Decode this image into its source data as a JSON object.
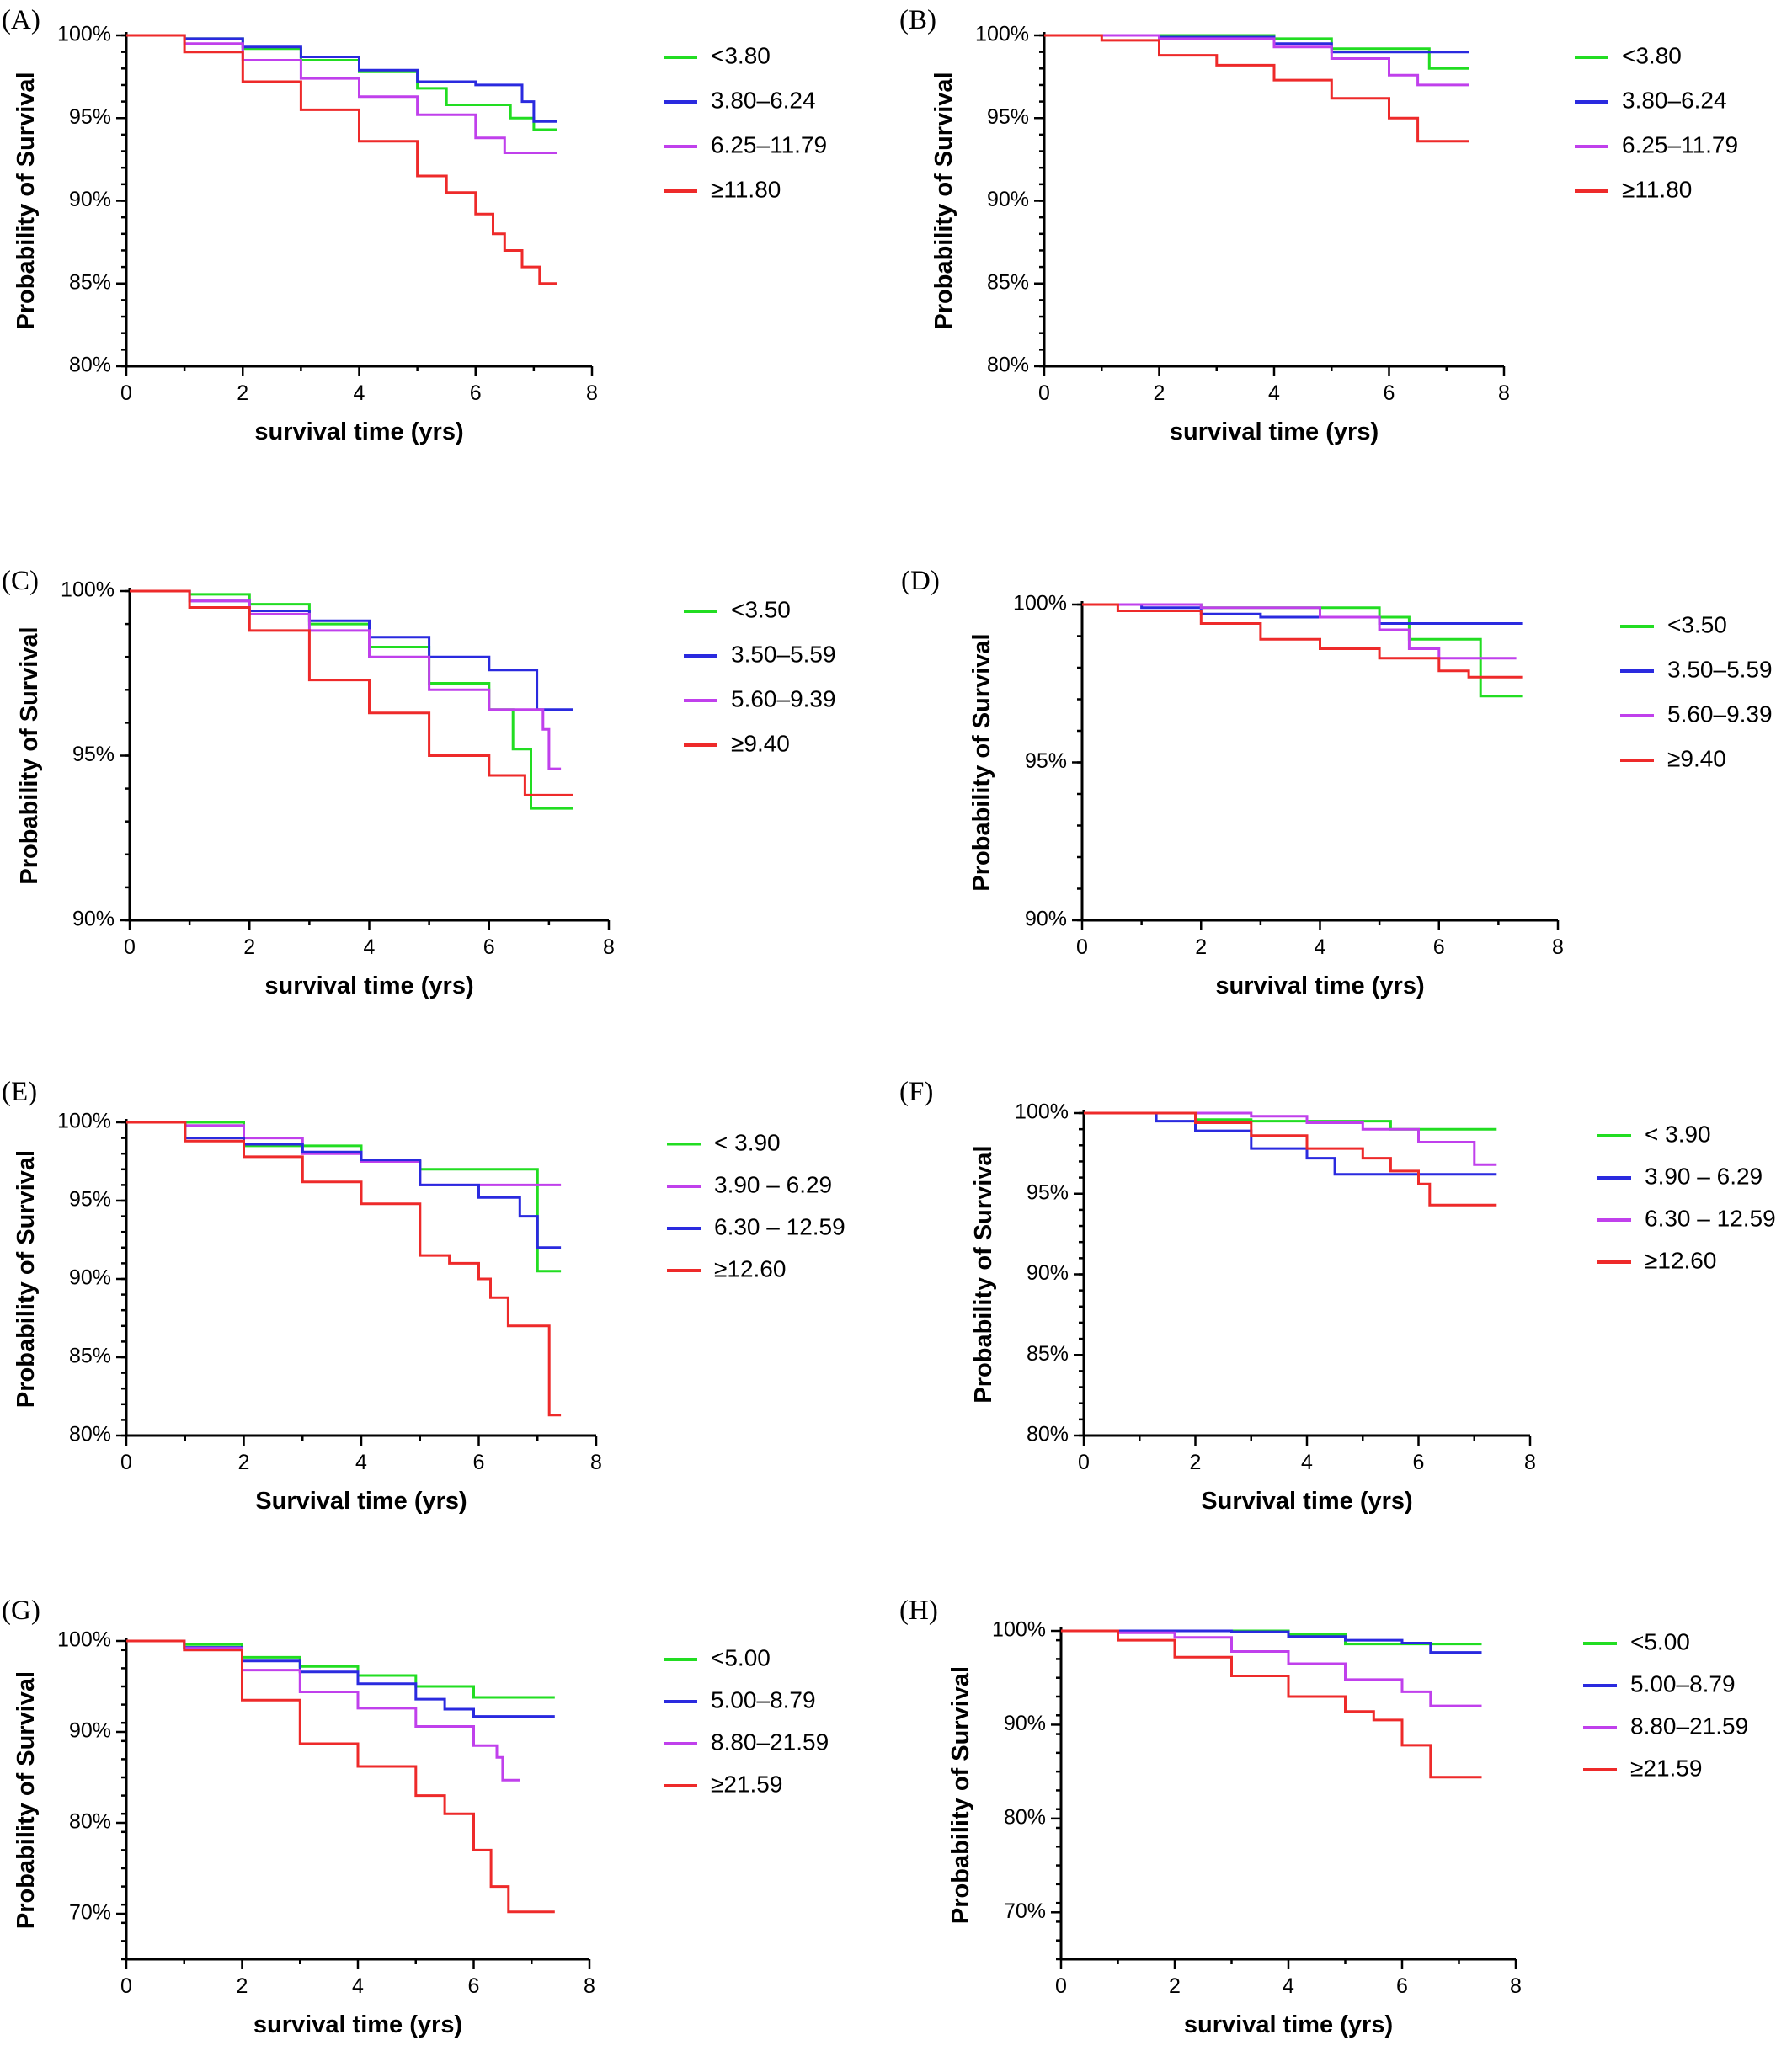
{
  "colors": {
    "green": "#22dd22",
    "blue": "#2a2adf",
    "purple": "#c040ec",
    "red": "#ee2a2a"
  },
  "chart_data": [
    {
      "panel": "(A)",
      "type": "line",
      "xlabel": "survival time (yrs)",
      "ylabel": "Probability of Survival",
      "xlim": [
        0,
        8
      ],
      "ylim": [
        80,
        100
      ],
      "xticks": [
        "0",
        "2",
        "4",
        "6",
        "8"
      ],
      "yticks": [
        "80%",
        "85%",
        "90%",
        "95%",
        "100%"
      ],
      "series": [
        {
          "name": "<3.80",
          "color": "#22dd22",
          "x": [
            0,
            1,
            2,
            3,
            4,
            5,
            5.5,
            6.3,
            6.6,
            7.0,
            7.4
          ],
          "y": [
            100,
            99.8,
            99.2,
            98.5,
            97.8,
            96.8,
            95.8,
            95.8,
            95.0,
            94.3,
            94.3
          ]
        },
        {
          "name": "3.80–6.24",
          "color": "#2a2adf",
          "x": [
            0,
            1,
            2,
            3,
            4,
            5,
            6,
            6.8,
            7.0,
            7.4
          ],
          "y": [
            100,
            99.8,
            99.3,
            98.7,
            97.9,
            97.2,
            97.0,
            96.0,
            94.8,
            94.8
          ]
        },
        {
          "name": "6.25–11.79",
          "color": "#c040ec",
          "x": [
            0,
            1,
            2,
            3,
            4,
            5,
            6,
            6.5,
            7.4
          ],
          "y": [
            100,
            99.5,
            98.5,
            97.4,
            96.3,
            95.2,
            93.8,
            92.9,
            92.9
          ]
        },
        {
          "name": "≥11.80",
          "color": "#ee2a2a",
          "x": [
            0,
            1,
            2,
            3,
            4,
            5,
            5.5,
            6.0,
            6.3,
            6.5,
            6.8,
            7.1,
            7.4
          ],
          "y": [
            100,
            99.0,
            97.2,
            95.5,
            93.6,
            91.5,
            90.5,
            89.2,
            88.0,
            87.0,
            86.0,
            85.0,
            85.0
          ]
        }
      ]
    },
    {
      "panel": "(B)",
      "type": "line",
      "xlabel": "survival time (yrs)",
      "ylabel": "Probability of Survival",
      "xlim": [
        0,
        8
      ],
      "ylim": [
        80,
        100
      ],
      "xticks": [
        "0",
        "2",
        "4",
        "6",
        "8"
      ],
      "yticks": [
        "80%",
        "85%",
        "90%",
        "95%",
        "100%"
      ],
      "series": [
        {
          "name": "<3.80",
          "color": "#22dd22",
          "x": [
            0,
            2,
            4,
            5,
            6.7,
            6.7,
            7.4
          ],
          "y": [
            100,
            100,
            99.8,
            99.2,
            99.0,
            98.0,
            98.0
          ]
        },
        {
          "name": "3.80–6.24",
          "color": "#2a2adf",
          "x": [
            0,
            2,
            4,
            5,
            7.4
          ],
          "y": [
            100,
            99.9,
            99.5,
            99.0,
            99.0
          ]
        },
        {
          "name": "6.25–11.79",
          "color": "#c040ec",
          "x": [
            0,
            2,
            4,
            5,
            6,
            6.5,
            7.4
          ],
          "y": [
            100,
            99.8,
            99.3,
            98.6,
            97.6,
            97.0,
            97.0
          ]
        },
        {
          "name": "≥11.80",
          "color": "#ee2a2a",
          "x": [
            0,
            1,
            2,
            3,
            4,
            5,
            6,
            6.5,
            7.4
          ],
          "y": [
            100,
            99.7,
            98.8,
            98.2,
            97.3,
            96.2,
            95.0,
            93.6,
            93.6
          ]
        }
      ]
    },
    {
      "panel": "(C)",
      "type": "line",
      "xlabel": "survival time (yrs)",
      "ylabel": "Probability of Survival",
      "xlim": [
        0,
        8
      ],
      "ylim": [
        90,
        100
      ],
      "xticks": [
        "0",
        "2",
        "4",
        "6",
        "8"
      ],
      "yticks": [
        "90%",
        "95%",
        "100%"
      ],
      "series": [
        {
          "name": "<3.50",
          "color": "#22dd22",
          "x": [
            0,
            1,
            2,
            3,
            4,
            5,
            6,
            6.4,
            6.7,
            7.4
          ],
          "y": [
            100,
            99.9,
            99.6,
            99.0,
            98.3,
            97.2,
            96.4,
            95.2,
            93.4,
            93.4
          ]
        },
        {
          "name": "3.50–5.59",
          "color": "#2a2adf",
          "x": [
            0,
            1,
            2,
            3,
            4,
            5,
            6,
            6.6,
            6.8,
            7.4
          ],
          "y": [
            100,
            99.7,
            99.4,
            99.1,
            98.6,
            98.0,
            97.6,
            97.6,
            96.4,
            96.4
          ]
        },
        {
          "name": "5.60–9.39",
          "color": "#c040ec",
          "x": [
            0,
            1,
            2,
            3,
            4,
            5,
            6,
            6.9,
            7.0,
            7.2
          ],
          "y": [
            100,
            99.7,
            99.3,
            98.8,
            98.0,
            97.0,
            96.4,
            95.8,
            94.6,
            94.6
          ]
        },
        {
          "name": "≥9.40",
          "color": "#ee2a2a",
          "x": [
            0,
            1,
            2,
            3,
            4,
            5,
            6,
            6.6,
            7.4
          ],
          "y": [
            100,
            99.5,
            98.8,
            97.3,
            96.3,
            95.0,
            94.4,
            93.8,
            93.8
          ]
        }
      ]
    },
    {
      "panel": "(D)",
      "type": "line",
      "xlabel": "survival time (yrs)",
      "ylabel": "Probability of Survival",
      "xlim": [
        0,
        8
      ],
      "ylim": [
        90,
        100
      ],
      "xticks": [
        "0",
        "2",
        "4",
        "6",
        "8"
      ],
      "yticks": [
        "90%",
        "95%",
        "100%"
      ],
      "series": [
        {
          "name": "<3.50",
          "color": "#22dd22",
          "x": [
            0,
            2,
            4,
            5,
            5.5,
            6.7,
            6.7,
            7.4
          ],
          "y": [
            100,
            99.9,
            99.9,
            99.6,
            98.9,
            98.9,
            97.1,
            97.1
          ]
        },
        {
          "name": "3.50–5.59",
          "color": "#2a2adf",
          "x": [
            0,
            1,
            2,
            3,
            4,
            5,
            7.4
          ],
          "y": [
            100,
            99.9,
            99.7,
            99.6,
            99.6,
            99.4,
            99.4
          ]
        },
        {
          "name": "5.60–9.39",
          "color": "#c040ec",
          "x": [
            0,
            2,
            4,
            5,
            5.5,
            6.0,
            7.3
          ],
          "y": [
            100,
            99.9,
            99.6,
            99.2,
            98.6,
            98.3,
            98.3
          ]
        },
        {
          "name": "≥9.40",
          "color": "#ee2a2a",
          "x": [
            0,
            0.6,
            2,
            3,
            4,
            5,
            6,
            6.5,
            7.4
          ],
          "y": [
            100,
            99.8,
            99.4,
            98.9,
            98.6,
            98.3,
            97.9,
            97.7,
            97.7
          ]
        }
      ]
    },
    {
      "panel": "(E)",
      "type": "line",
      "xlabel": "Survival time (yrs)",
      "ylabel": "Probability of Survival",
      "xlim": [
        0,
        8
      ],
      "ylim": [
        80,
        100
      ],
      "xticks": [
        "0",
        "2",
        "4",
        "6",
        "8"
      ],
      "yticks": [
        "80%",
        "85%",
        "90%",
        "95%",
        "100%"
      ],
      "series": [
        {
          "name": "< 3.90",
          "color": "#22dd22",
          "x": [
            0,
            2,
            4,
            5,
            7.0,
            7.0,
            7.4
          ],
          "y": [
            100,
            98.5,
            97.5,
            97.0,
            97.0,
            90.5,
            90.5
          ]
        },
        {
          "name": "3.90 – 6.29",
          "color": "#c040ec",
          "x": [
            0,
            1,
            2,
            3,
            4,
            5,
            7.4
          ],
          "y": [
            100,
            99.8,
            99.0,
            98.0,
            97.5,
            96.0,
            96.0
          ]
        },
        {
          "name": "6.30 – 12.59",
          "color": "#2a2adf",
          "x": [
            0,
            1,
            2,
            3,
            4,
            5,
            6,
            6.7,
            7.0,
            7.4
          ],
          "y": [
            100,
            99.0,
            98.6,
            98.1,
            97.6,
            96.0,
            95.2,
            94.0,
            92.0,
            92.0
          ]
        },
        {
          "name": "≥12.60",
          "color": "#ee2a2a",
          "x": [
            0,
            1,
            2,
            3,
            4,
            5,
            5.5,
            6.0,
            6.2,
            6.5,
            7.1,
            7.2,
            7.4
          ],
          "y": [
            100,
            98.8,
            97.8,
            96.2,
            94.8,
            91.5,
            91.0,
            90.0,
            88.8,
            87.0,
            87.0,
            81.3,
            81.3
          ]
        }
      ]
    },
    {
      "panel": "(F)",
      "type": "line",
      "xlabel": "Survival time (yrs)",
      "ylabel": "Probability of Survival",
      "xlim": [
        0,
        8
      ],
      "ylim": [
        80,
        100
      ],
      "xticks": [
        "0",
        "2",
        "4",
        "6",
        "8"
      ],
      "yticks": [
        "80%",
        "85%",
        "90%",
        "95%",
        "100%"
      ],
      "series": [
        {
          "name": "< 3.90",
          "color": "#22dd22",
          "x": [
            0,
            2,
            3,
            4,
            5,
            5.5,
            7.4
          ],
          "y": [
            100,
            99.6,
            99.5,
            99.5,
            99.5,
            99.0,
            99.0
          ]
        },
        {
          "name": "3.90 – 6.29",
          "color": "#2a2adf",
          "x": [
            0,
            1.3,
            2,
            3,
            4,
            4.5,
            7.4
          ],
          "y": [
            100,
            99.5,
            98.9,
            97.8,
            97.2,
            96.2,
            96.2
          ]
        },
        {
          "name": "6.30 – 12.59",
          "color": "#c040ec",
          "x": [
            0,
            2,
            3,
            4,
            5,
            6,
            6.6,
            7.0,
            7.4
          ],
          "y": [
            100,
            100,
            99.8,
            99.4,
            99.0,
            98.2,
            98.2,
            96.8,
            96.8
          ]
        },
        {
          "name": "≥12.60",
          "color": "#ee2a2a",
          "x": [
            0,
            2,
            3,
            4,
            5,
            5.5,
            6,
            6.2,
            7.4
          ],
          "y": [
            100,
            99.4,
            98.6,
            97.8,
            97.2,
            96.4,
            95.6,
            94.3,
            94.3
          ]
        }
      ]
    },
    {
      "panel": "(G)",
      "type": "line",
      "xlabel": "survival time (yrs)",
      "ylabel": "Probability of Survival",
      "xlim": [
        0,
        8
      ],
      "ylim": [
        65,
        100
      ],
      "xticks": [
        "0",
        "2",
        "4",
        "6",
        "8"
      ],
      "yticks": [
        "70%",
        "80%",
        "90%",
        "100%"
      ],
      "series": [
        {
          "name": "<5.00",
          "color": "#22dd22",
          "x": [
            0,
            1,
            2,
            3,
            4,
            5,
            6,
            7.4
          ],
          "y": [
            100,
            99.6,
            98.2,
            97.2,
            96.2,
            95.0,
            93.8,
            93.8
          ]
        },
        {
          "name": "5.00–8.79",
          "color": "#2a2adf",
          "x": [
            0,
            1,
            2,
            3,
            4,
            5,
            5.5,
            6,
            7.4
          ],
          "y": [
            100,
            99.3,
            97.8,
            96.6,
            95.3,
            93.6,
            92.5,
            91.7,
            91.7
          ]
        },
        {
          "name": "8.80–21.59",
          "color": "#c040ec",
          "x": [
            0,
            1,
            2,
            3,
            4,
            5,
            6,
            6.4,
            6.5,
            6.8
          ],
          "y": [
            100,
            99.2,
            96.8,
            94.4,
            92.6,
            90.6,
            88.5,
            87.2,
            84.7,
            84.7
          ]
        },
        {
          "name": "≥21.59",
          "color": "#ee2a2a",
          "x": [
            0,
            1,
            2,
            3,
            4,
            5,
            5.5,
            6,
            6.3,
            6.6,
            7.4
          ],
          "y": [
            100,
            99.0,
            93.5,
            88.7,
            86.2,
            83.0,
            81.0,
            77.0,
            73.0,
            70.2,
            70.2
          ]
        }
      ]
    },
    {
      "panel": "(H)",
      "type": "line",
      "xlabel": "survival time (yrs)",
      "ylabel": "Probability of Survival",
      "xlim": [
        0,
        8
      ],
      "ylim": [
        65,
        100
      ],
      "xticks": [
        "0",
        "2",
        "4",
        "6",
        "8"
      ],
      "yticks": [
        "70%",
        "80%",
        "90%",
        "100%"
      ],
      "series": [
        {
          "name": "<5.00",
          "color": "#22dd22",
          "x": [
            0,
            2,
            4,
            5,
            7.4
          ],
          "y": [
            100,
            100,
            99.6,
            98.6,
            98.6
          ]
        },
        {
          "name": "5.00–8.79",
          "color": "#2a2adf",
          "x": [
            0,
            2,
            3,
            4,
            5,
            6,
            6.5,
            7.4
          ],
          "y": [
            100,
            100,
            99.9,
            99.4,
            99.0,
            98.7,
            97.7,
            97.7
          ]
        },
        {
          "name": "8.80–21.59",
          "color": "#c040ec",
          "x": [
            0,
            1,
            2,
            3,
            4,
            5,
            6,
            6.5,
            7.4
          ],
          "y": [
            100,
            99.8,
            99.3,
            97.8,
            96.5,
            94.8,
            93.5,
            92.0,
            92.0
          ]
        },
        {
          "name": "≥21.59",
          "color": "#ee2a2a",
          "x": [
            0,
            1,
            2,
            3,
            4,
            5,
            5.5,
            6,
            6.5,
            7.4
          ],
          "y": [
            100,
            99.0,
            97.2,
            95.2,
            93.0,
            91.4,
            90.5,
            87.8,
            84.4,
            84.4
          ]
        }
      ]
    }
  ]
}
